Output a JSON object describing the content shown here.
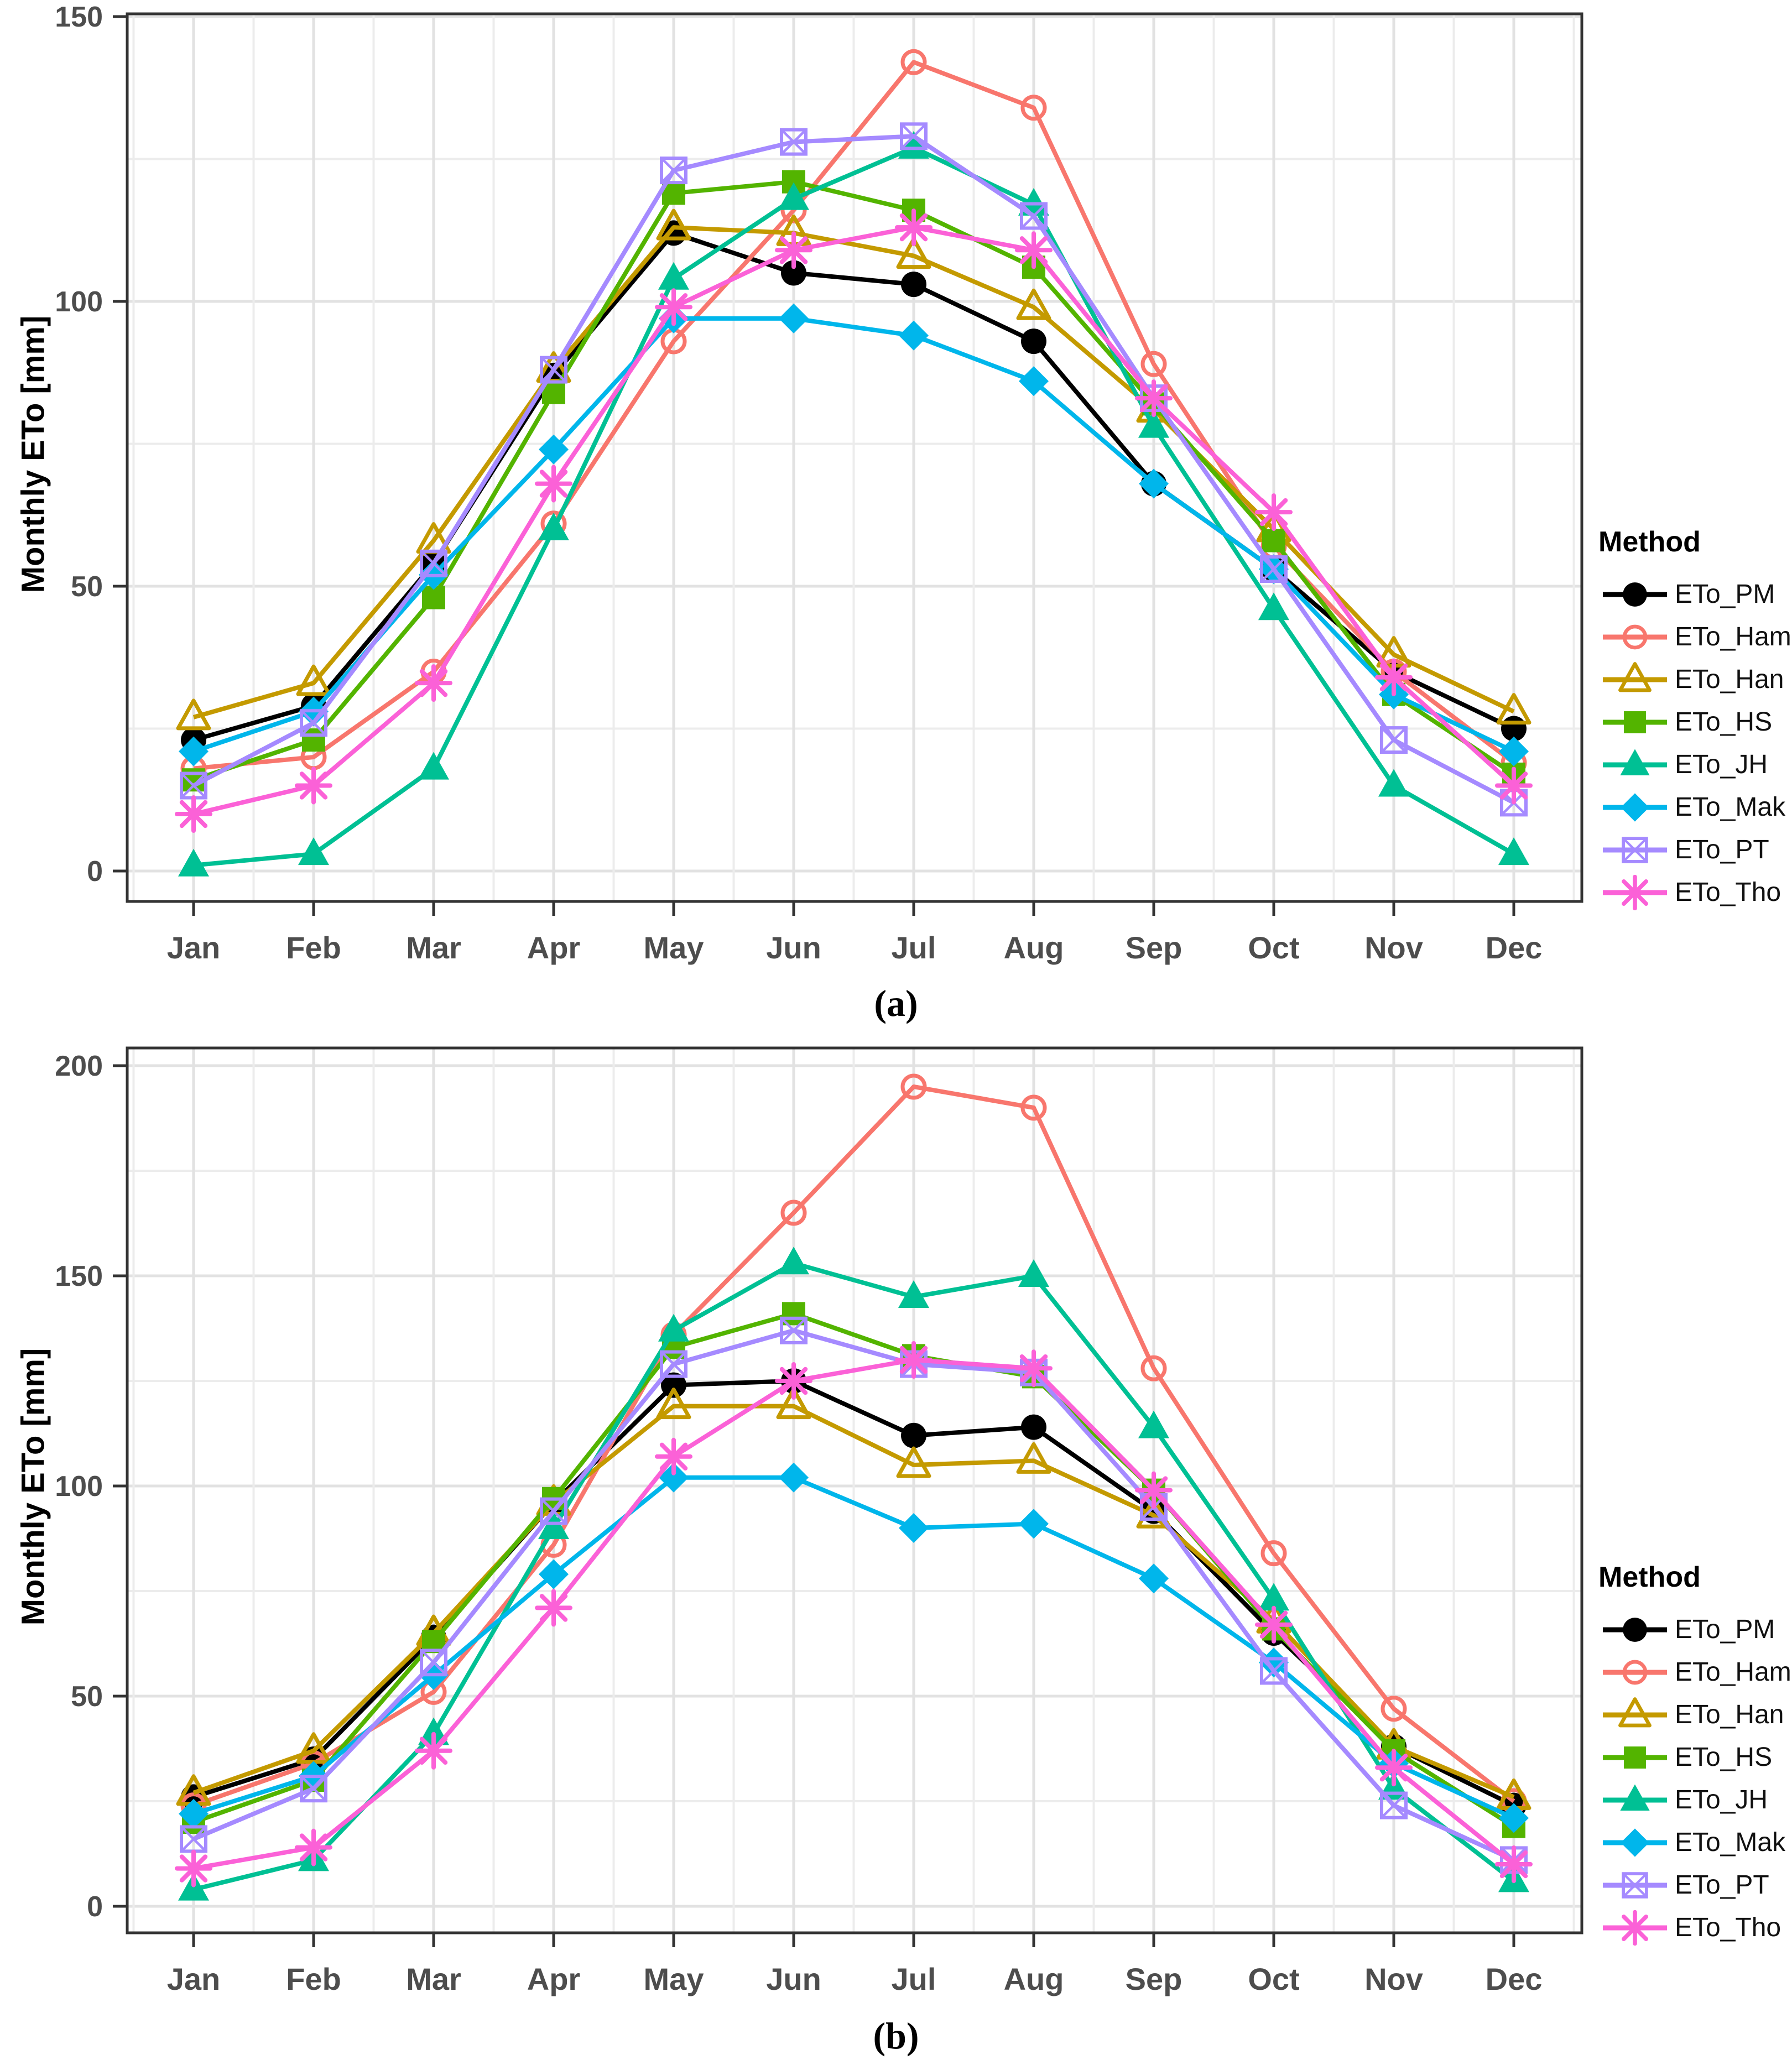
{
  "figure": {
    "background": "#ffffff"
  },
  "chart_data": [
    {
      "type": "line",
      "panel": "a",
      "caption": "(a)",
      "ylabel": "Monthly ETo [mm]",
      "xlabel": "",
      "legend_title": "Method",
      "legend_position": "right",
      "grid": true,
      "ylim": [
        0,
        150
      ],
      "yticks": [
        0,
        50,
        100,
        150
      ],
      "ygrid_step": 25,
      "categories": [
        "Jan",
        "Feb",
        "Mar",
        "Apr",
        "May",
        "Jun",
        "Jul",
        "Aug",
        "Sep",
        "Oct",
        "Nov",
        "Dec"
      ],
      "series": [
        {
          "name": "ETo_PM",
          "color": "#000000",
          "marker": "filled-circle",
          "values": [
            23,
            29,
            54,
            87,
            112,
            105,
            103,
            93,
            68,
            53,
            35,
            25
          ]
        },
        {
          "name": "ETo_Ham",
          "color": "#F8766D",
          "marker": "open-circle",
          "values": [
            18,
            20,
            35,
            61,
            93,
            116,
            142,
            134,
            89,
            57,
            35,
            19
          ]
        },
        {
          "name": "ETo_Han",
          "color": "#C49A00",
          "marker": "open-triangle",
          "values": [
            27,
            33,
            58,
            88,
            113,
            112,
            108,
            99,
            81,
            60,
            38,
            28
          ]
        },
        {
          "name": "ETo_HS",
          "color": "#53B400",
          "marker": "filled-square",
          "values": [
            16,
            23,
            48,
            84,
            119,
            121,
            116,
            106,
            82,
            58,
            31,
            17
          ]
        },
        {
          "name": "ETo_JH",
          "color": "#00C094",
          "marker": "filled-triangle",
          "values": [
            1,
            3,
            18,
            60,
            104,
            118,
            127,
            117,
            78,
            46,
            15,
            3
          ]
        },
        {
          "name": "ETo_Mak",
          "color": "#00B6EB",
          "marker": "filled-diamond",
          "values": [
            21,
            28,
            52,
            74,
            97,
            97,
            94,
            86,
            68,
            53,
            31,
            21
          ]
        },
        {
          "name": "ETo_PT",
          "color": "#A58AFF",
          "marker": "box-x",
          "values": [
            15,
            26,
            54,
            88,
            123,
            128,
            129,
            115,
            83,
            53,
            23,
            12
          ]
        },
        {
          "name": "ETo_Tho",
          "color": "#FB61D7",
          "marker": "asterisk",
          "values": [
            10,
            15,
            33,
            68,
            99,
            109,
            113,
            109,
            83,
            63,
            34,
            15
          ]
        }
      ]
    },
    {
      "type": "line",
      "panel": "b",
      "caption": "(b)",
      "ylabel": "Monthly ETo [mm]",
      "xlabel": "",
      "legend_title": "Method",
      "legend_position": "right",
      "grid": true,
      "ylim": [
        0,
        200
      ],
      "yticks": [
        0,
        50,
        100,
        150,
        200
      ],
      "ygrid_step": 25,
      "categories": [
        "Jan",
        "Feb",
        "Mar",
        "Apr",
        "May",
        "Jun",
        "Jul",
        "Aug",
        "Sep",
        "Oct",
        "Nov",
        "Dec"
      ],
      "series": [
        {
          "name": "ETo_PM",
          "color": "#000000",
          "marker": "filled-circle",
          "values": [
            26,
            35,
            64,
            96,
            124,
            125,
            112,
            114,
            94,
            65,
            38,
            24
          ]
        },
        {
          "name": "ETo_Ham",
          "color": "#F8766D",
          "marker": "open-circle",
          "values": [
            24,
            34,
            51,
            86,
            136,
            165,
            195,
            190,
            128,
            84,
            47,
            25
          ]
        },
        {
          "name": "ETo_Han",
          "color": "#C49A00",
          "marker": "open-triangle",
          "values": [
            27,
            37,
            65,
            96,
            119,
            119,
            105,
            106,
            93,
            68,
            38,
            26
          ]
        },
        {
          "name": "ETo_HS",
          "color": "#53B400",
          "marker": "filled-square",
          "values": [
            20,
            30,
            63,
            97,
            133,
            141,
            131,
            126,
            99,
            66,
            37,
            19
          ]
        },
        {
          "name": "ETo_JH",
          "color": "#00C094",
          "marker": "filled-triangle",
          "values": [
            4,
            11,
            41,
            90,
            137,
            153,
            145,
            150,
            114,
            73,
            28,
            6
          ]
        },
        {
          "name": "ETo_Mak",
          "color": "#00B6EB",
          "marker": "filled-diamond",
          "values": [
            22,
            31,
            55,
            79,
            102,
            102,
            90,
            91,
            78,
            58,
            34,
            21
          ]
        },
        {
          "name": "ETo_PT",
          "color": "#A58AFF",
          "marker": "box-x",
          "values": [
            16,
            28,
            58,
            94,
            129,
            137,
            129,
            127,
            95,
            56,
            24,
            11
          ]
        },
        {
          "name": "ETo_Tho",
          "color": "#FB61D7",
          "marker": "asterisk",
          "values": [
            9,
            14,
            37,
            71,
            107,
            125,
            130,
            128,
            99,
            67,
            33,
            10
          ]
        }
      ]
    }
  ]
}
